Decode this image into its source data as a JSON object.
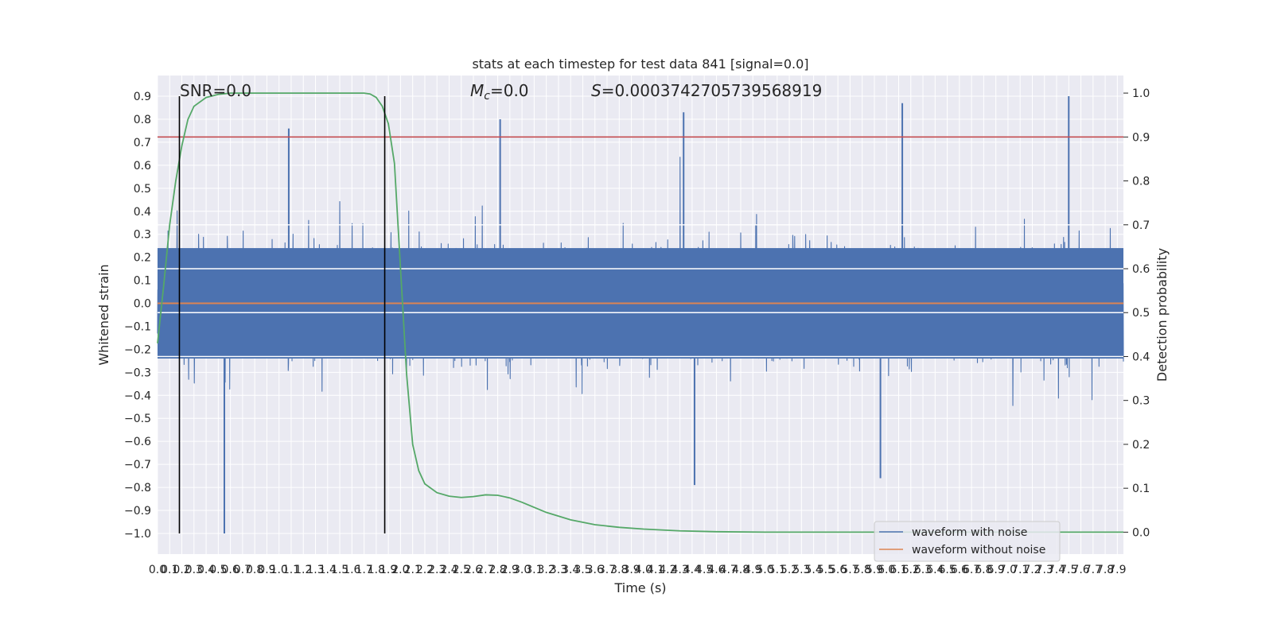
{
  "chart_data": {
    "type": "line",
    "title": "stats at each timestep for test data 841 [signal=0.0]",
    "xlabel": "Time (s)",
    "ylabel_left": "Whitened strain",
    "ylabel_right": "Detection probability",
    "xlim": [
      0.0,
      7.95
    ],
    "ylim_left": [
      -1.09,
      0.99
    ],
    "ylim_right": [
      -0.05,
      1.04
    ],
    "x_ticks": [
      "0.0",
      "0.1",
      "0.2",
      "0.3",
      "0.4",
      "0.5",
      "0.6",
      "0.7",
      "0.8",
      "0.9",
      "1.0",
      "1.1",
      "1.2",
      "1.3",
      "1.4",
      "1.5",
      "1.6",
      "1.7",
      "1.8",
      "1.9",
      "2.0",
      "2.1",
      "2.2",
      "2.3",
      "2.4",
      "2.5",
      "2.6",
      "2.7",
      "2.8",
      "2.9",
      "3.0",
      "3.1",
      "3.2",
      "3.3",
      "3.4",
      "3.5",
      "3.6",
      "3.7",
      "3.8",
      "3.9",
      "4.0",
      "4.1",
      "4.2",
      "4.3",
      "4.4",
      "4.5",
      "4.6",
      "4.7",
      "4.8",
      "4.9",
      "5.0",
      "5.1",
      "5.2",
      "5.3",
      "5.4",
      "5.5",
      "5.6",
      "5.7",
      "5.8",
      "5.9",
      "6.0",
      "6.1",
      "6.2",
      "6.3",
      "6.4",
      "6.5",
      "6.6",
      "6.7",
      "6.8",
      "6.9",
      "7.0",
      "7.1",
      "7.2",
      "7.3",
      "7.4",
      "7.5",
      "7.6",
      "7.7",
      "7.8",
      "7.9"
    ],
    "y_ticks_left": [
      "−1.0",
      "−0.9",
      "−0.8",
      "−0.7",
      "−0.6",
      "−0.5",
      "−0.4",
      "−0.3",
      "−0.2",
      "−0.1",
      "0.0",
      "0.1",
      "0.2",
      "0.3",
      "0.4",
      "0.5",
      "0.6",
      "0.7",
      "0.8",
      "0.9"
    ],
    "y_ticks_right": [
      "0.0",
      "0.1",
      "0.2",
      "0.3",
      "0.4",
      "0.5",
      "0.6",
      "0.7",
      "0.8",
      "0.9",
      "1.0"
    ],
    "annotations": {
      "snr": "SNR=0.0",
      "mc_symbol": "M",
      "mc_sub": "c",
      "mc_value": "=0.0",
      "s_symbol": "S",
      "s_value": "=0.0003742705739568919"
    },
    "legend_position": "lower right",
    "grid": true,
    "colors": {
      "noise": "#4c72b0",
      "clean": "#dd8452",
      "probability": "#55a868",
      "threshold": "#c44e52",
      "markers": "#000000",
      "background": "#eaeaf2"
    },
    "series": [
      {
        "name": "waveform with noise",
        "axis": "left",
        "style": "dense noise band, envelope approx ±0.5, peaks to 0.90 and -1.0"
      },
      {
        "name": "waveform without noise",
        "axis": "left",
        "x": [
          0.0,
          7.95
        ],
        "values": [
          0.0,
          0.0
        ]
      },
      {
        "axis": "right",
        "x": [
          0.0,
          0.05,
          0.1,
          0.15,
          0.2,
          0.25,
          0.3,
          0.4,
          0.5,
          0.6,
          0.8,
          1.0,
          1.2,
          1.4,
          1.6,
          1.7,
          1.75,
          1.8,
          1.85,
          1.9,
          1.95,
          2.0,
          2.05,
          2.1,
          2.15,
          2.2,
          2.3,
          2.4,
          2.5,
          2.6,
          2.7,
          2.8,
          2.9,
          3.0,
          3.2,
          3.4,
          3.6,
          3.8,
          4.0,
          4.3,
          4.6,
          5.0,
          6.0,
          7.0,
          7.95
        ],
        "values": [
          0.43,
          0.56,
          0.7,
          0.8,
          0.88,
          0.94,
          0.97,
          0.99,
          0.997,
          1.0,
          1.0,
          1.0,
          1.0,
          1.0,
          1.0,
          1.0,
          0.998,
          0.99,
          0.97,
          0.93,
          0.84,
          0.6,
          0.36,
          0.2,
          0.14,
          0.11,
          0.09,
          0.082,
          0.079,
          0.081,
          0.085,
          0.084,
          0.078,
          0.068,
          0.045,
          0.028,
          0.017,
          0.011,
          0.007,
          0.003,
          0.001,
          0.0,
          0.0,
          0.0,
          0.0
        ]
      },
      {
        "name": "threshold",
        "axis": "right",
        "values": [
          0.9
        ]
      },
      {
        "name": "marker",
        "axis": "left",
        "x": [
          0.18,
          1.87
        ]
      },
      {
        "name": "horizontal reference lines",
        "axis": "right",
        "values": [
          0.7,
          0.6,
          0.5,
          0.4
        ]
      }
    ]
  }
}
